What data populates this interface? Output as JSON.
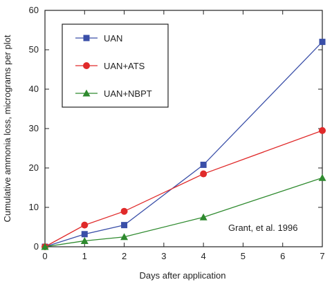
{
  "chart_data": {
    "type": "line",
    "title": "",
    "xlabel": "Days after application",
    "ylabel": "Cumulative ammonia loss, micrograms per plot",
    "xlim": [
      0,
      7
    ],
    "ylim": [
      0,
      60
    ],
    "x_ticks": [
      0,
      1,
      2,
      3,
      4,
      5,
      6,
      7
    ],
    "y_ticks": [
      0,
      10,
      20,
      30,
      40,
      50,
      60
    ],
    "grid": false,
    "legend_position": "top-left",
    "annotation": "Grant, et al.  1996",
    "series": [
      {
        "name": "UAN",
        "color": "#3a4fa8",
        "marker": "square",
        "x": [
          0,
          1,
          2,
          4,
          7
        ],
        "y": [
          0,
          3.2,
          5.5,
          20.8,
          52
        ]
      },
      {
        "name": "UAN+ATS",
        "color": "#e02a2a",
        "marker": "circle",
        "x": [
          0,
          1,
          2,
          4,
          7
        ],
        "y": [
          0,
          5.5,
          9,
          18.5,
          29.5
        ]
      },
      {
        "name": "UAN+NBPT",
        "color": "#2e8a2e",
        "marker": "triangle",
        "x": [
          0,
          1,
          2,
          4,
          7
        ],
        "y": [
          0,
          1.5,
          2.5,
          7.5,
          17.5
        ]
      }
    ]
  }
}
